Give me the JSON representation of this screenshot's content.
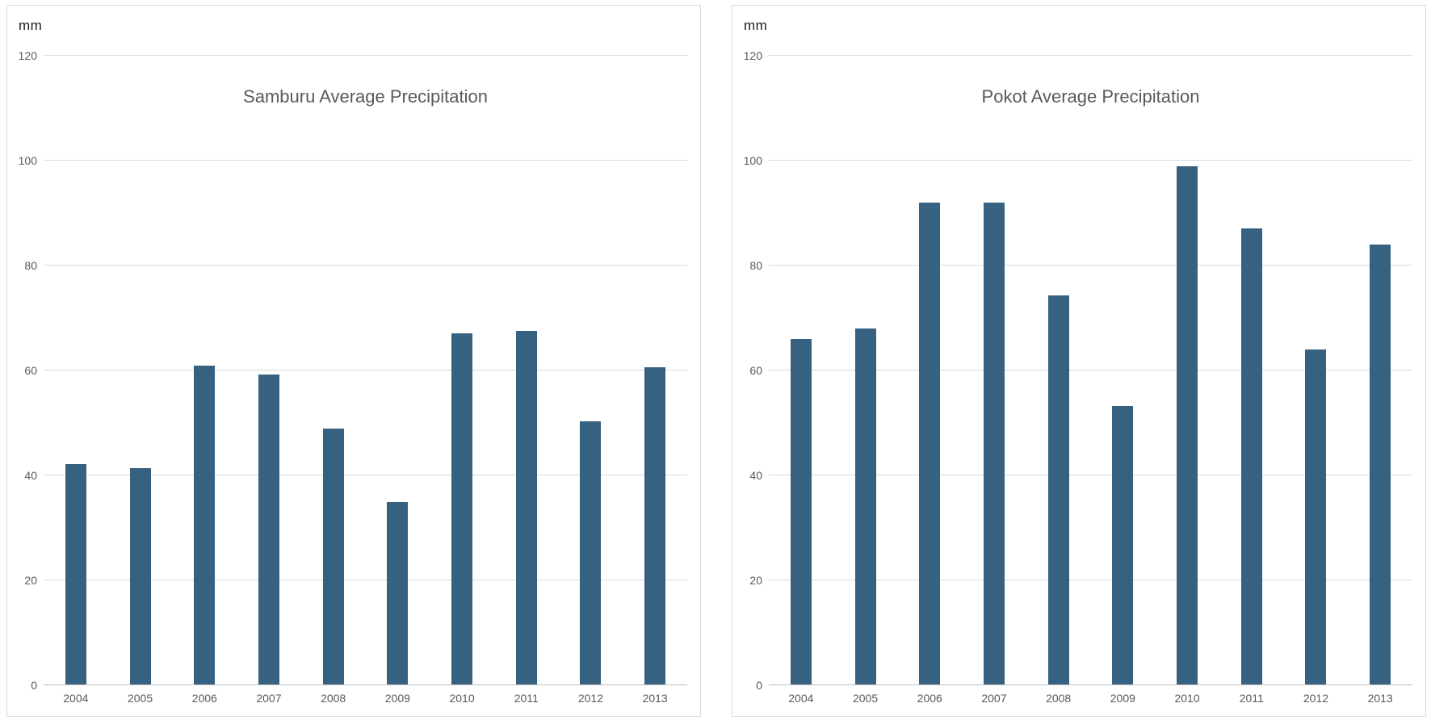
{
  "chart_data": [
    {
      "type": "bar",
      "title": "Samburu Average Precipitation",
      "unit_label": "mm",
      "ylabel": "mm",
      "xlabel": "",
      "categories": [
        "2004",
        "2005",
        "2006",
        "2007",
        "2008",
        "2009",
        "2010",
        "2011",
        "2012",
        "2013"
      ],
      "values": [
        42.0,
        41.2,
        60.8,
        59.1,
        48.8,
        34.8,
        66.9,
        67.4,
        50.1,
        60.5
      ],
      "ylim": [
        0,
        120
      ],
      "yticks": [
        0,
        20,
        40,
        60,
        80,
        100,
        120
      ],
      "grid": "horizontal",
      "legend": "none"
    },
    {
      "type": "bar",
      "title": "Pokot Average Precipitation",
      "unit_label": "mm",
      "ylabel": "mm",
      "xlabel": "",
      "categories": [
        "2004",
        "2005",
        "2006",
        "2007",
        "2008",
        "2009",
        "2010",
        "2011",
        "2012",
        "2013"
      ],
      "values": [
        65.9,
        67.8,
        91.8,
        91.8,
        74.2,
        53.1,
        98.7,
        86.9,
        63.9,
        83.8
      ],
      "ylim": [
        0,
        120
      ],
      "yticks": [
        0,
        20,
        40,
        60,
        80,
        100,
        120
      ],
      "grid": "horizontal",
      "legend": "none"
    }
  ],
  "style": {
    "bar_color": "#376180",
    "gridline_color": "#d9d9d9",
    "axis_line_color": "#bfbfbf",
    "tick_label_color": "#595959",
    "title_color": "#595959",
    "unit_label_color": "#1a1a1a",
    "panel_border_color": "#d9d9d9",
    "background_color": "#ffffff"
  }
}
